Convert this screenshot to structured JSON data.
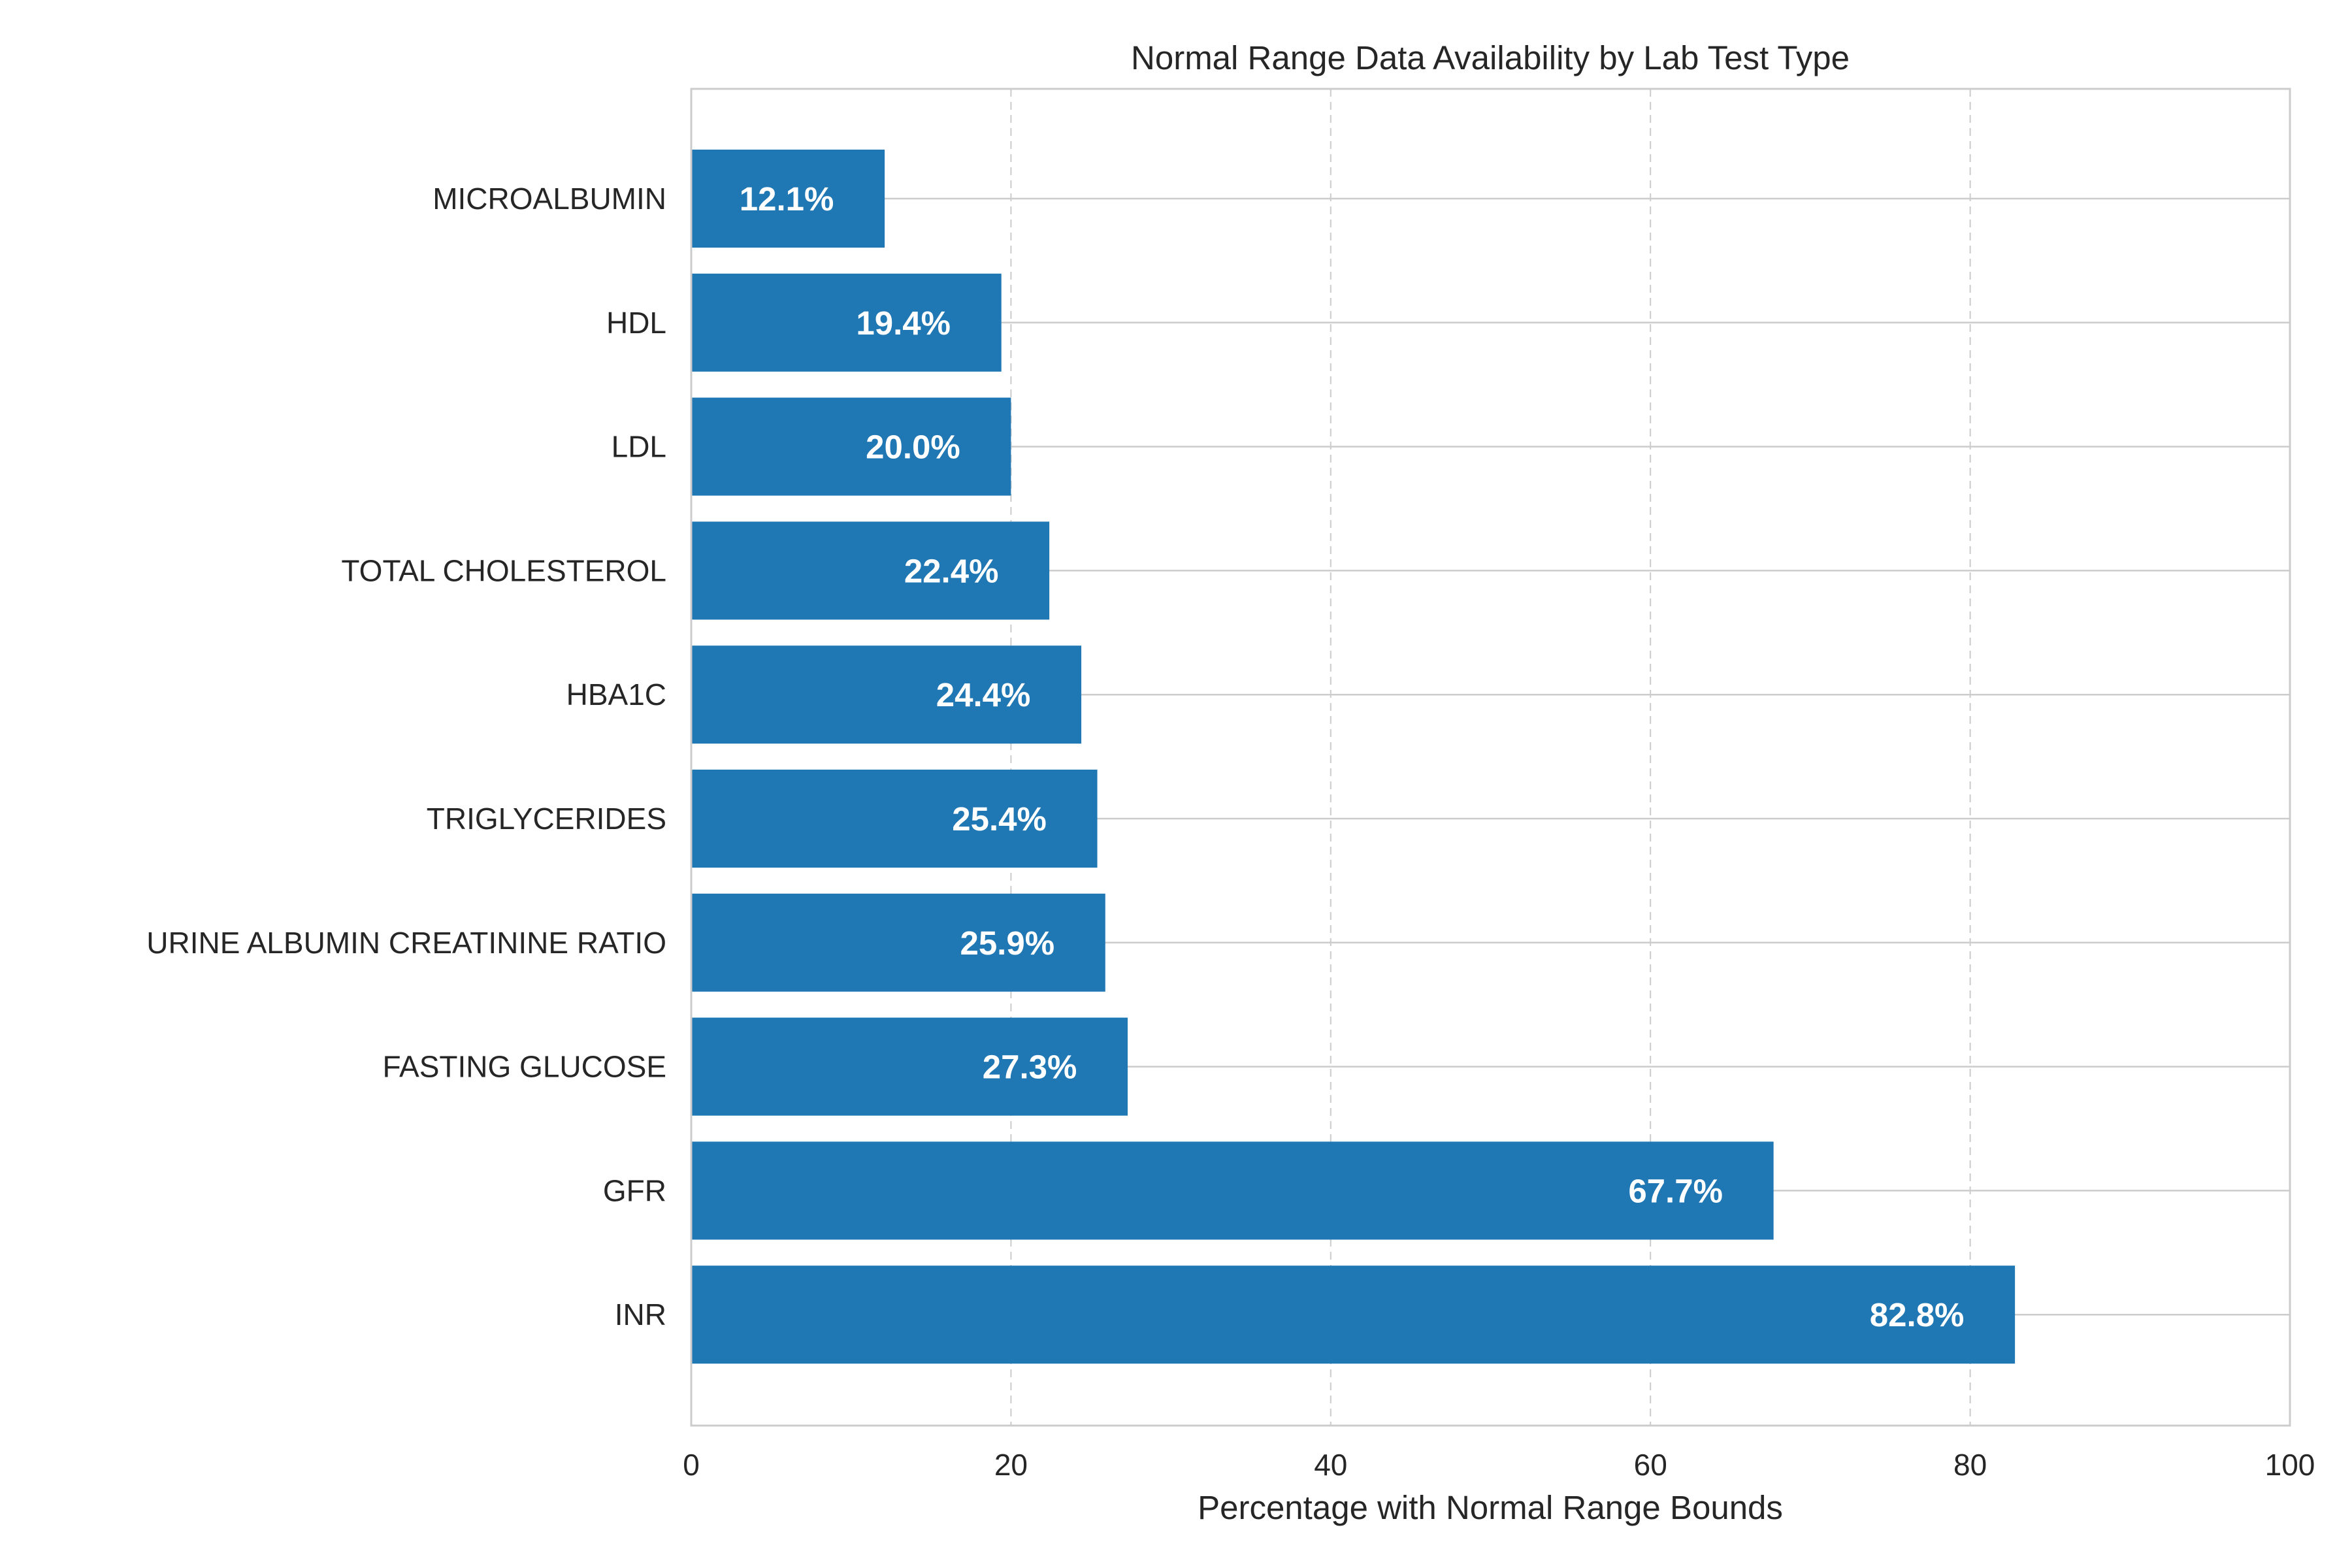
{
  "chart_data": {
    "type": "bar",
    "orientation": "horizontal",
    "title": "Normal Range Data Availability by Lab Test Type",
    "xlabel": "Percentage with Normal Range Bounds",
    "ylabel": "",
    "xlim": [
      0,
      100
    ],
    "x_ticks": [
      0,
      20,
      40,
      60,
      80,
      100
    ],
    "grid": true,
    "categories": [
      "MICROALBUMIN",
      "HDL",
      "LDL",
      "TOTAL CHOLESTEROL",
      "HBA1C",
      "TRIGLYCERIDES",
      "URINE ALBUMIN CREATININE RATIO",
      "FASTING GLUCOSE",
      "GFR",
      "INR"
    ],
    "values": [
      12.1,
      19.4,
      20.0,
      22.4,
      24.4,
      25.4,
      25.9,
      27.3,
      67.7,
      82.8
    ],
    "value_labels": [
      "12.1%",
      "19.4%",
      "20.0%",
      "22.4%",
      "24.4%",
      "25.4%",
      "25.9%",
      "27.3%",
      "67.7%",
      "82.8%"
    ],
    "colors": {
      "bar": "#1f77b4",
      "value_label": "#ffffff",
      "grid": "#cccccc",
      "spine": "#cccccc",
      "text": "#262626"
    }
  }
}
